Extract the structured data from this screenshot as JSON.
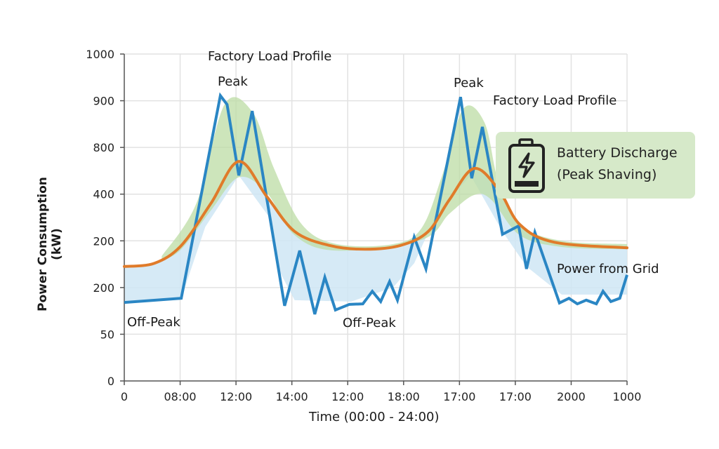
{
  "chart_data": {
    "type": "line",
    "title": "",
    "xlabel": "Time (00:00 - 24:00)",
    "ylabel": "Power Consumption (kW)",
    "x_tick_labels": [
      "0",
      "08:00",
      "12:00",
      "14:00",
      "12:00",
      "18:00",
      "17:00",
      "17:00",
      "2000",
      "1000"
    ],
    "y_tick_labels": [
      "0",
      "50",
      "200",
      "200",
      "400",
      "800",
      "900",
      "1000"
    ],
    "note_units": "x and y values are expressed in tick-position units (tick label index) because the printed tick labels are non-monotonic",
    "grid": true,
    "series": [
      {
        "role": "measured-load",
        "color": "#2a86c4",
        "points": [
          [
            0,
            1.68
          ],
          [
            1.02,
            1.77
          ],
          [
            1.72,
            6.11
          ],
          [
            1.84,
            5.92
          ],
          [
            2.05,
            4.4
          ],
          [
            2.29,
            5.78
          ],
          [
            2.87,
            1.61
          ],
          [
            3.14,
            2.79
          ],
          [
            3.41,
            1.43
          ],
          [
            3.59,
            2.22
          ],
          [
            3.78,
            1.52
          ],
          [
            4.03,
            1.64
          ],
          [
            4.27,
            1.65
          ],
          [
            4.44,
            1.92
          ],
          [
            4.59,
            1.7
          ],
          [
            4.75,
            2.13
          ],
          [
            4.89,
            1.73
          ],
          [
            5.19,
            3.08
          ],
          [
            5.4,
            2.4
          ],
          [
            6.02,
            6.08
          ],
          [
            6.22,
            4.34
          ],
          [
            6.41,
            5.44
          ],
          [
            6.77,
            3.14
          ],
          [
            7.06,
            3.32
          ],
          [
            7.2,
            2.4
          ],
          [
            7.35,
            3.18
          ],
          [
            7.79,
            1.67
          ],
          [
            7.96,
            1.77
          ],
          [
            8.11,
            1.65
          ],
          [
            8.27,
            1.73
          ],
          [
            8.45,
            1.65
          ],
          [
            8.57,
            1.92
          ],
          [
            8.71,
            1.7
          ],
          [
            8.87,
            1.77
          ],
          [
            9.0,
            2.27
          ]
        ]
      },
      {
        "role": "smoothed-profile",
        "color": "#e07b2a",
        "points": [
          [
            0,
            2.45
          ],
          [
            0.54,
            2.52
          ],
          [
            1.02,
            2.9
          ],
          [
            1.55,
            3.8
          ],
          [
            2.05,
            4.7
          ],
          [
            2.55,
            3.95
          ],
          [
            3.05,
            3.2
          ],
          [
            3.68,
            2.9
          ],
          [
            4.31,
            2.82
          ],
          [
            4.94,
            2.9
          ],
          [
            5.44,
            3.2
          ],
          [
            5.82,
            3.88
          ],
          [
            6.26,
            4.55
          ],
          [
            6.7,
            4.1
          ],
          [
            7.08,
            3.35
          ],
          [
            7.7,
            2.97
          ],
          [
            9.0,
            2.85
          ]
        ]
      }
    ],
    "bands": {
      "grid_band": {
        "color": "#cfe6f4",
        "lower": [
          [
            0,
            1.68
          ],
          [
            1.02,
            1.77
          ],
          [
            1.45,
            3.3
          ],
          [
            2.05,
            4.4
          ],
          [
            2.6,
            3.5
          ],
          [
            2.8,
            2.3
          ],
          [
            3.05,
            1.73
          ],
          [
            4.06,
            1.7
          ],
          [
            4.81,
            2.0
          ],
          [
            5.19,
            2.52
          ],
          [
            5.6,
            3.6
          ],
          [
            6.2,
            4.4
          ],
          [
            6.77,
            3.2
          ],
          [
            7.2,
            2.45
          ],
          [
            7.83,
            1.85
          ],
          [
            9,
            1.85
          ]
        ]
      },
      "shaving_band": {
        "color": "#bcdca4",
        "upper": [
          [
            0.67,
            2.67
          ],
          [
            1.29,
            3.8
          ],
          [
            1.8,
            5.93
          ],
          [
            2.3,
            5.75
          ],
          [
            2.68,
            4.55
          ],
          [
            3.18,
            3.35
          ],
          [
            3.81,
            2.93
          ],
          [
            4.81,
            2.93
          ],
          [
            5.32,
            3.27
          ],
          [
            5.69,
            4.4
          ],
          [
            6.07,
            5.83
          ],
          [
            6.45,
            5.53
          ],
          [
            6.7,
            4.25
          ],
          [
            7.08,
            3.35
          ],
          [
            7.83,
            3.0
          ],
          [
            9.0,
            2.93
          ]
        ],
        "lower": [
          [
            0.67,
            2.57
          ],
          [
            1.02,
            2.82
          ],
          [
            1.55,
            3.65
          ],
          [
            2.05,
            4.36
          ],
          [
            2.55,
            4.03
          ],
          [
            3.05,
            3.12
          ],
          [
            3.81,
            2.79
          ],
          [
            5.32,
            3.02
          ],
          [
            5.82,
            3.58
          ],
          [
            6.26,
            3.98
          ],
          [
            6.57,
            3.88
          ],
          [
            7.08,
            3.12
          ],
          [
            7.83,
            2.87
          ],
          [
            9,
            2.82
          ]
        ]
      }
    }
  },
  "annotations": {
    "factory_load_profile_1": "Factory Load Profile",
    "peak_1": "Peak",
    "peak_2": "Peak",
    "factory_load_profile_2": "Factory Load Profile",
    "battery_line1": "Battery Discharge",
    "battery_line2": "(Peak Shaving)",
    "power_from_grid": "Power from Grid",
    "off_peak_1": "Off-Peak",
    "off_peak_2": "Off-Peak",
    "battery_icon": "battery-charging-icon",
    "callout_color": "#d6e9c9"
  }
}
